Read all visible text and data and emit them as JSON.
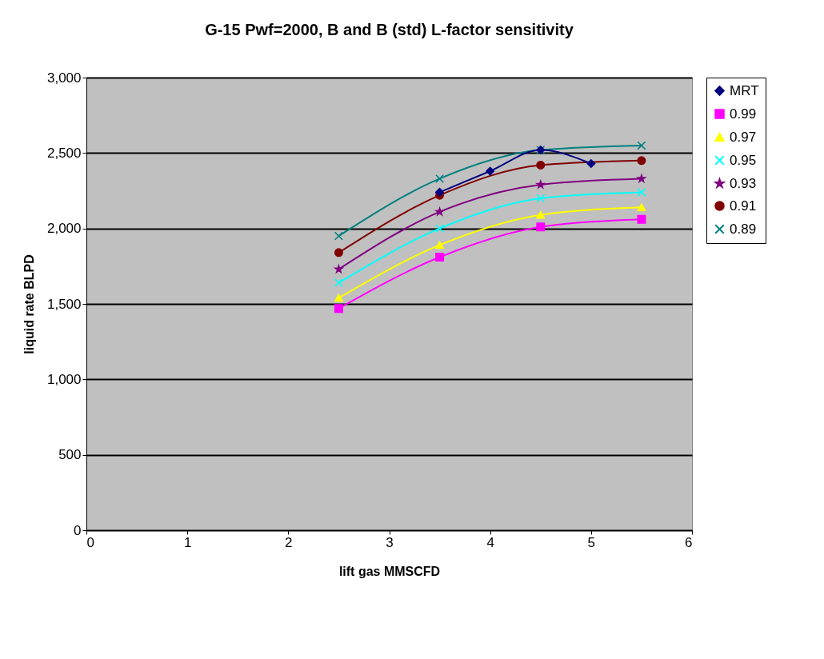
{
  "chart_data": {
    "type": "line",
    "title": "G-15 Pwf=2000, B and B (std) L-factor sensitivity",
    "xlabel": "lift gas MMSCFD",
    "ylabel": "liquid rate BLPD",
    "x": [
      2.5,
      3.5,
      4.5,
      5.5
    ],
    "xlim": [
      0,
      6
    ],
    "xticks": [
      0,
      1,
      2,
      3,
      4,
      5,
      6
    ],
    "ylim": [
      0,
      3000
    ],
    "yticks": [
      {
        "value": 0,
        "label": "0"
      },
      {
        "value": 500,
        "label": "500"
      },
      {
        "value": 1000,
        "label": "1,000"
      },
      {
        "value": 1500,
        "label": "1,500"
      },
      {
        "value": 2000,
        "label": "2,000"
      },
      {
        "value": 2500,
        "label": "2,500"
      },
      {
        "value": 3000,
        "label": "3,000"
      }
    ],
    "grid": "y",
    "legend": "right",
    "series": [
      {
        "name": "MRT",
        "color": "#000080",
        "marker": "diamond",
        "x": [
          3.5,
          4,
          4.5,
          5
        ],
        "values": [
          2240,
          2380,
          2520,
          2430
        ]
      },
      {
        "name": "0.99",
        "color": "#ff00ff",
        "marker": "square",
        "values": [
          1470,
          1810,
          2010,
          2060
        ]
      },
      {
        "name": "0.97",
        "color": "#ffff00",
        "marker": "triangle",
        "values": [
          1540,
          1890,
          2090,
          2140
        ]
      },
      {
        "name": "0.95",
        "color": "#00ffff",
        "marker": "cross",
        "values": [
          1640,
          2000,
          2200,
          2240
        ]
      },
      {
        "name": "0.93",
        "color": "#800080",
        "marker": "star",
        "values": [
          1730,
          2110,
          2290,
          2330
        ]
      },
      {
        "name": "0.91",
        "color": "#800000",
        "marker": "circle",
        "values": [
          1840,
          2220,
          2420,
          2450
        ]
      },
      {
        "name": "0.89",
        "color": "#008080",
        "marker": "cross",
        "values": [
          1950,
          2330,
          2520,
          2550
        ]
      }
    ]
  }
}
